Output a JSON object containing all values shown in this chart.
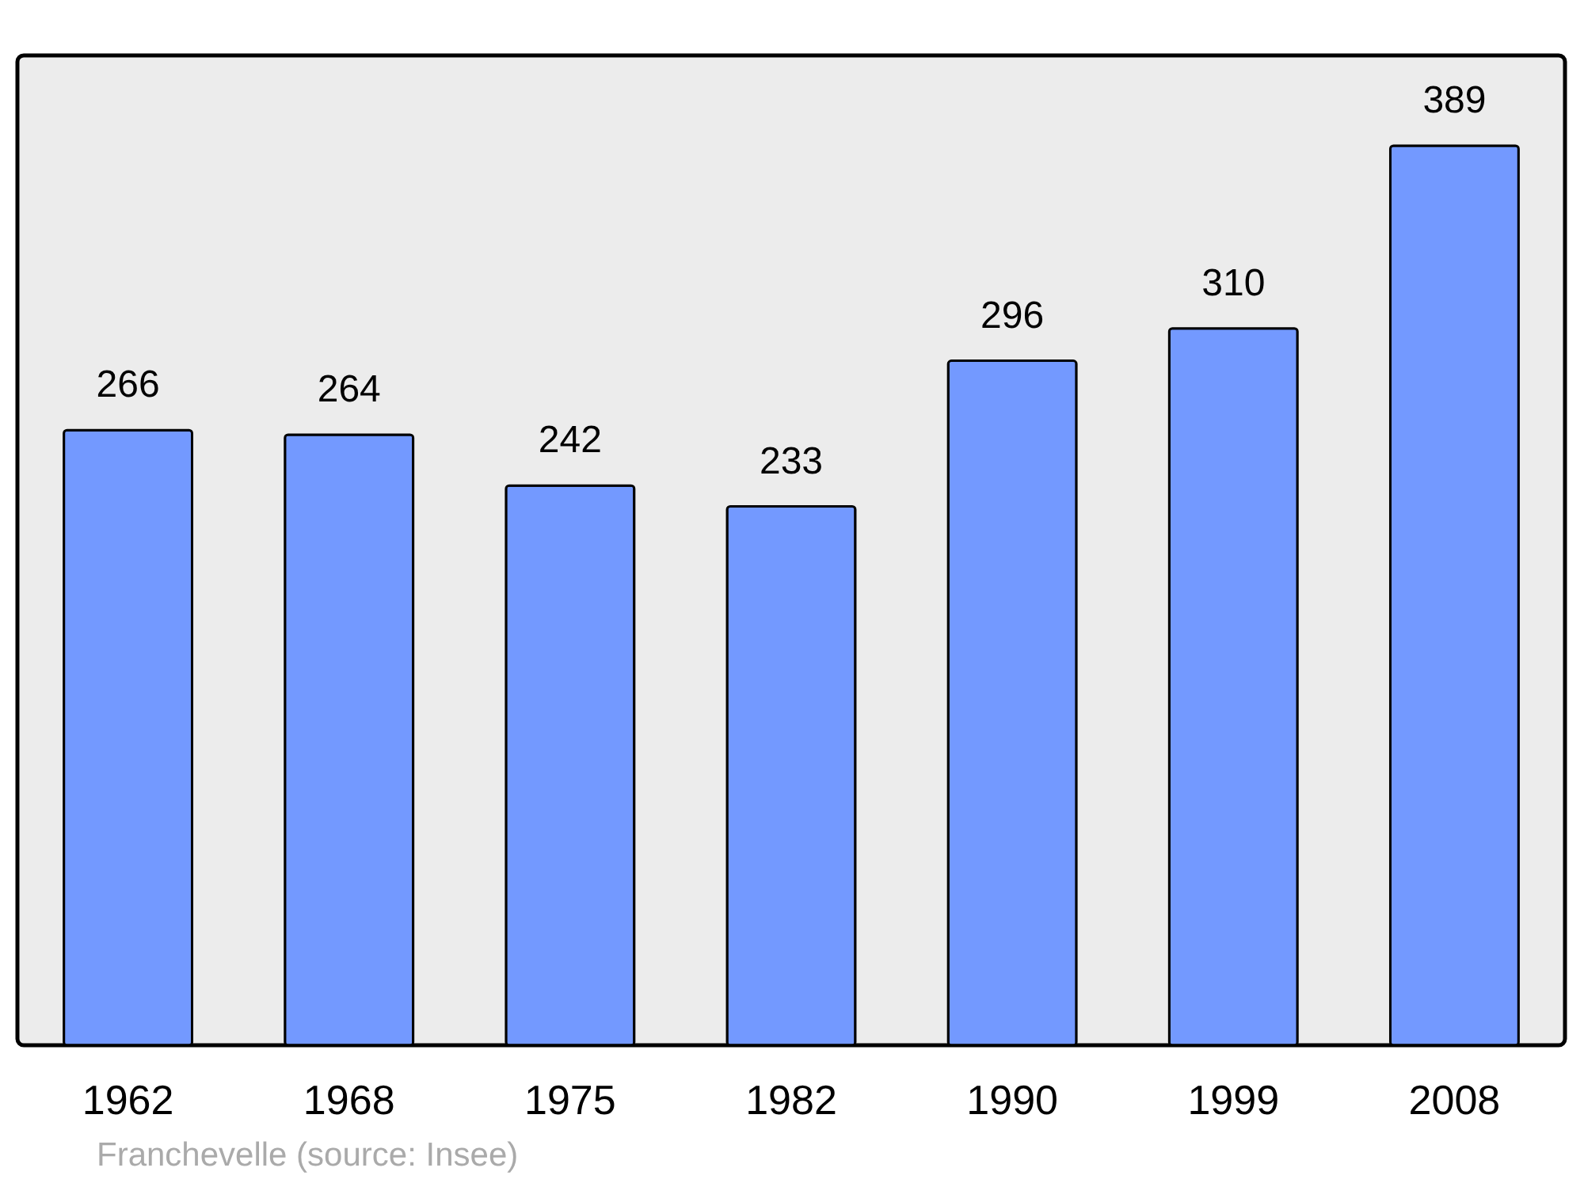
{
  "chart_data": {
    "type": "bar",
    "categories": [
      "1962",
      "1968",
      "1975",
      "1982",
      "1990",
      "1999",
      "2008"
    ],
    "values": [
      266,
      264,
      242,
      233,
      296,
      310,
      389
    ],
    "color": "#7399ff",
    "ylim": [
      0,
      428
    ],
    "data_labels": true,
    "tick_labels": "x",
    "grid": false,
    "annotations": [
      "Franchevelle    (source: Insee)"
    ]
  }
}
